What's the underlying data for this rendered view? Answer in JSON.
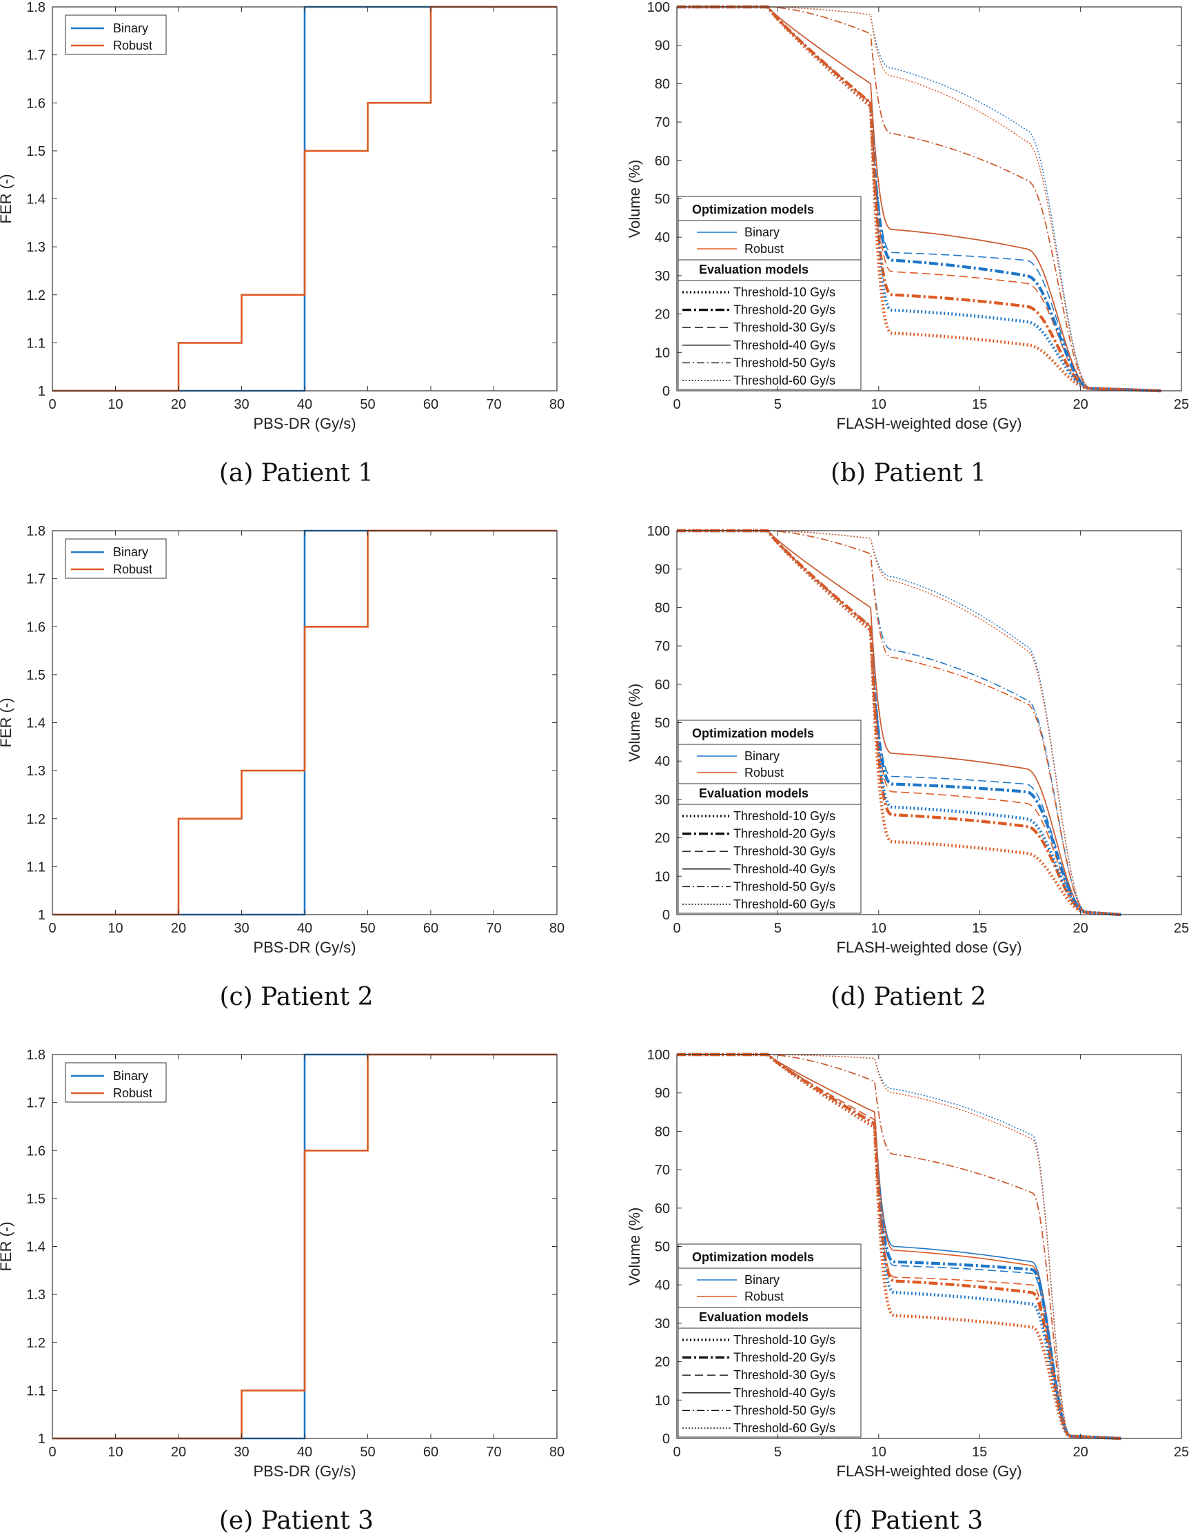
{
  "colors": {
    "binary": "#1f77c8",
    "robust": "#dd5a24",
    "neutral": "#111111"
  },
  "chart_data": [
    {
      "id": "a",
      "type": "line",
      "caption": "(a) Patient 1",
      "xlabel": "PBS-DR (Gy/s)",
      "ylabel": "FER (-)",
      "xlim": [
        0,
        80
      ],
      "ylim": [
        1,
        1.8
      ],
      "xticks": [
        "0",
        "10",
        "20",
        "30",
        "40",
        "50",
        "60",
        "70",
        "80"
      ],
      "yticks": [
        "1",
        "1.1",
        "1.2",
        "1.3",
        "1.4",
        "1.5",
        "1.6",
        "1.7",
        "1.8"
      ],
      "legend": {
        "position": "top-left",
        "entries": [
          "Binary",
          "Robust"
        ]
      },
      "series": [
        {
          "name": "Binary",
          "color": "binary",
          "x": [
            0,
            40,
            40,
            80
          ],
          "y": [
            1,
            1,
            1.8,
            1.8
          ]
        },
        {
          "name": "Robust",
          "color": "robust",
          "x": [
            0,
            20,
            20,
            30,
            30,
            40,
            40,
            50,
            50,
            60,
            60,
            80
          ],
          "y": [
            1,
            1,
            1.1,
            1.1,
            1.2,
            1.2,
            1.5,
            1.5,
            1.6,
            1.6,
            1.8,
            1.8
          ]
        }
      ]
    },
    {
      "id": "b",
      "type": "line",
      "caption": "(b) Patient 1",
      "xlabel": "FLASH-weighted dose (Gy)",
      "ylabel": "Volume (%)",
      "xlim": [
        0,
        25
      ],
      "ylim": [
        0,
        100
      ],
      "xticks": [
        "0",
        "5",
        "10",
        "15",
        "20",
        "25"
      ],
      "yticks": [
        "0",
        "10",
        "20",
        "30",
        "40",
        "50",
        "60",
        "70",
        "80",
        "90",
        "100"
      ],
      "legend": {
        "position": "bottom-left",
        "opt_title": "Optimization models",
        "opt_entries": [
          "Binary",
          "Robust"
        ],
        "eval_title": "Evaluation models",
        "eval_entries": [
          "Threshold-10 Gy/s",
          "Threshold-20 Gy/s",
          "Threshold-30 Gy/s",
          "Threshold-40 Gy/s",
          "Threshold-50 Gy/s",
          "Threshold-60 Gy/s"
        ]
      },
      "dvh": {
        "x_start": 4.5,
        "x_drop": 9.6,
        "x_mid": 10.7,
        "x_knee": 17.3,
        "x_zero": 20.5,
        "x_end": 24,
        "curves": [
          {
            "threshold": 10,
            "model": "Binary",
            "v_drop": 74,
            "plateau_start": 21,
            "plateau_end": 18
          },
          {
            "threshold": 10,
            "model": "Robust",
            "v_drop": 74,
            "plateau_start": 15,
            "plateau_end": 12
          },
          {
            "threshold": 20,
            "model": "Binary",
            "v_drop": 75,
            "plateau_start": 34,
            "plateau_end": 30
          },
          {
            "threshold": 20,
            "model": "Robust",
            "v_drop": 75,
            "plateau_start": 25,
            "plateau_end": 22
          },
          {
            "threshold": 30,
            "model": "Binary",
            "v_drop": 75,
            "plateau_start": 36,
            "plateau_end": 34
          },
          {
            "threshold": 30,
            "model": "Robust",
            "v_drop": 75,
            "plateau_start": 31,
            "plateau_end": 28
          },
          {
            "threshold": 40,
            "model": "Binary",
            "v_drop": 80,
            "plateau_start": 42,
            "plateau_end": 37
          },
          {
            "threshold": 40,
            "model": "Robust",
            "v_drop": 80,
            "plateau_start": 42,
            "plateau_end": 37
          },
          {
            "threshold": 50,
            "model": "Binary",
            "v_drop": 93,
            "plateau_start": 67,
            "plateau_end": 55
          },
          {
            "threshold": 50,
            "model": "Robust",
            "v_drop": 93,
            "plateau_start": 67,
            "plateau_end": 55
          },
          {
            "threshold": 60,
            "model": "Binary",
            "v_drop": 98,
            "plateau_start": 84,
            "plateau_end": 68
          },
          {
            "threshold": 60,
            "model": "Robust",
            "v_drop": 98,
            "plateau_start": 82,
            "plateau_end": 65
          }
        ]
      }
    },
    {
      "id": "c",
      "type": "line",
      "caption": "(c) Patient 2",
      "xlabel": "PBS-DR (Gy/s)",
      "ylabel": "FER (-)",
      "xlim": [
        0,
        80
      ],
      "ylim": [
        1,
        1.8
      ],
      "xticks": [
        "0",
        "10",
        "20",
        "30",
        "40",
        "50",
        "60",
        "70",
        "80"
      ],
      "yticks": [
        "1",
        "1.1",
        "1.2",
        "1.3",
        "1.4",
        "1.5",
        "1.6",
        "1.7",
        "1.8"
      ],
      "legend": {
        "position": "top-left",
        "entries": [
          "Binary",
          "Robust"
        ]
      },
      "series": [
        {
          "name": "Binary",
          "color": "binary",
          "x": [
            0,
            40,
            40,
            80
          ],
          "y": [
            1,
            1,
            1.8,
            1.8
          ]
        },
        {
          "name": "Robust",
          "color": "robust",
          "x": [
            0,
            20,
            20,
            30,
            30,
            40,
            40,
            50,
            50,
            80
          ],
          "y": [
            1,
            1,
            1.2,
            1.2,
            1.3,
            1.3,
            1.6,
            1.6,
            1.8,
            1.8
          ]
        }
      ]
    },
    {
      "id": "d",
      "type": "line",
      "caption": "(d) Patient 2",
      "xlabel": "FLASH-weighted dose (Gy)",
      "ylabel": "Volume (%)",
      "xlim": [
        0,
        25
      ],
      "ylim": [
        0,
        100
      ],
      "xticks": [
        "0",
        "5",
        "10",
        "15",
        "20",
        "25"
      ],
      "yticks": [
        "0",
        "10",
        "20",
        "30",
        "40",
        "50",
        "60",
        "70",
        "80",
        "90",
        "100"
      ],
      "legend": {
        "position": "bottom-left",
        "opt_title": "Optimization models",
        "opt_entries": [
          "Binary",
          "Robust"
        ],
        "eval_title": "Evaluation models",
        "eval_entries": [
          "Threshold-10 Gy/s",
          "Threshold-20 Gy/s",
          "Threshold-30 Gy/s",
          "Threshold-40 Gy/s",
          "Threshold-50 Gy/s",
          "Threshold-60 Gy/s"
        ]
      },
      "dvh": {
        "x_start": 4.5,
        "x_drop": 9.6,
        "x_mid": 10.7,
        "x_knee": 17.3,
        "x_zero": 20.3,
        "x_end": 22,
        "curves": [
          {
            "threshold": 10,
            "model": "Binary",
            "v_drop": 74,
            "plateau_start": 28,
            "plateau_end": 25
          },
          {
            "threshold": 10,
            "model": "Robust",
            "v_drop": 74,
            "plateau_start": 19,
            "plateau_end": 16
          },
          {
            "threshold": 20,
            "model": "Binary",
            "v_drop": 75,
            "plateau_start": 34,
            "plateau_end": 32
          },
          {
            "threshold": 20,
            "model": "Robust",
            "v_drop": 75,
            "plateau_start": 26,
            "plateau_end": 23
          },
          {
            "threshold": 30,
            "model": "Binary",
            "v_drop": 75,
            "plateau_start": 36,
            "plateau_end": 34
          },
          {
            "threshold": 30,
            "model": "Robust",
            "v_drop": 75,
            "plateau_start": 32,
            "plateau_end": 29
          },
          {
            "threshold": 40,
            "model": "Binary",
            "v_drop": 80,
            "plateau_start": 42,
            "plateau_end": 38
          },
          {
            "threshold": 40,
            "model": "Robust",
            "v_drop": 80,
            "plateau_start": 42,
            "plateau_end": 38
          },
          {
            "threshold": 50,
            "model": "Binary",
            "v_drop": 94,
            "plateau_start": 69,
            "plateau_end": 56
          },
          {
            "threshold": 50,
            "model": "Robust",
            "v_drop": 94,
            "plateau_start": 67,
            "plateau_end": 55
          },
          {
            "threshold": 60,
            "model": "Binary",
            "v_drop": 98,
            "plateau_start": 88,
            "plateau_end": 70
          },
          {
            "threshold": 60,
            "model": "Robust",
            "v_drop": 98,
            "plateau_start": 87,
            "plateau_end": 69
          }
        ]
      }
    },
    {
      "id": "e",
      "type": "line",
      "caption": "(e) Patient 3",
      "xlabel": "PBS-DR (Gy/s)",
      "ylabel": "FER (-)",
      "xlim": [
        0,
        80
      ],
      "ylim": [
        1,
        1.8
      ],
      "xticks": [
        "0",
        "10",
        "20",
        "30",
        "40",
        "50",
        "60",
        "70",
        "80"
      ],
      "yticks": [
        "1",
        "1.1",
        "1.2",
        "1.3",
        "1.4",
        "1.5",
        "1.6",
        "1.7",
        "1.8"
      ],
      "legend": {
        "position": "top-left",
        "entries": [
          "Binary",
          "Robust"
        ]
      },
      "series": [
        {
          "name": "Binary",
          "color": "binary",
          "x": [
            0,
            40,
            40,
            80
          ],
          "y": [
            1,
            1,
            1.8,
            1.8
          ]
        },
        {
          "name": "Robust",
          "color": "robust",
          "x": [
            0,
            30,
            30,
            40,
            40,
            50,
            50,
            80
          ],
          "y": [
            1,
            1,
            1.1,
            1.1,
            1.6,
            1.6,
            1.8,
            1.8
          ]
        }
      ]
    },
    {
      "id": "f",
      "type": "line",
      "caption": "(f) Patient 3",
      "xlabel": "FLASH-weighted dose (Gy)",
      "ylabel": "Volume (%)",
      "xlim": [
        0,
        25
      ],
      "ylim": [
        0,
        100
      ],
      "xticks": [
        "0",
        "5",
        "10",
        "15",
        "20",
        "25"
      ],
      "yticks": [
        "0",
        "10",
        "20",
        "30",
        "40",
        "50",
        "60",
        "70",
        "80",
        "90",
        "100"
      ],
      "legend": {
        "position": "bottom-left",
        "opt_title": "Optimization models",
        "opt_entries": [
          "Binary",
          "Robust"
        ],
        "eval_title": "Evaluation models",
        "eval_entries": [
          "Threshold-10 Gy/s",
          "Threshold-20 Gy/s",
          "Threshold-30 Gy/s",
          "Threshold-40 Gy/s",
          "Threshold-50 Gy/s",
          "Threshold-60 Gy/s"
        ]
      },
      "dvh": {
        "x_start": 4.5,
        "x_drop": 9.8,
        "x_mid": 10.8,
        "x_knee": 17.6,
        "x_zero": 19.5,
        "x_end": 22,
        "curves": [
          {
            "threshold": 10,
            "model": "Binary",
            "v_drop": 81,
            "plateau_start": 38,
            "plateau_end": 35
          },
          {
            "threshold": 10,
            "model": "Robust",
            "v_drop": 81,
            "plateau_start": 32,
            "plateau_end": 29
          },
          {
            "threshold": 20,
            "model": "Binary",
            "v_drop": 82,
            "plateau_start": 46,
            "plateau_end": 44
          },
          {
            "threshold": 20,
            "model": "Robust",
            "v_drop": 82,
            "plateau_start": 41,
            "plateau_end": 38
          },
          {
            "threshold": 30,
            "model": "Binary",
            "v_drop": 83,
            "plateau_start": 45,
            "plateau_end": 43
          },
          {
            "threshold": 30,
            "model": "Robust",
            "v_drop": 83,
            "plateau_start": 42,
            "plateau_end": 40
          },
          {
            "threshold": 40,
            "model": "Binary",
            "v_drop": 85,
            "plateau_start": 50,
            "plateau_end": 46
          },
          {
            "threshold": 40,
            "model": "Robust",
            "v_drop": 85,
            "plateau_start": 49,
            "plateau_end": 45
          },
          {
            "threshold": 50,
            "model": "Binary",
            "v_drop": 93,
            "plateau_start": 74,
            "plateau_end": 64
          },
          {
            "threshold": 50,
            "model": "Robust",
            "v_drop": 93,
            "plateau_start": 74,
            "plateau_end": 64
          },
          {
            "threshold": 60,
            "model": "Binary",
            "v_drop": 99,
            "plateau_start": 91,
            "plateau_end": 79
          },
          {
            "threshold": 60,
            "model": "Robust",
            "v_drop": 99,
            "plateau_start": 90,
            "plateau_end": 78
          }
        ]
      }
    }
  ]
}
